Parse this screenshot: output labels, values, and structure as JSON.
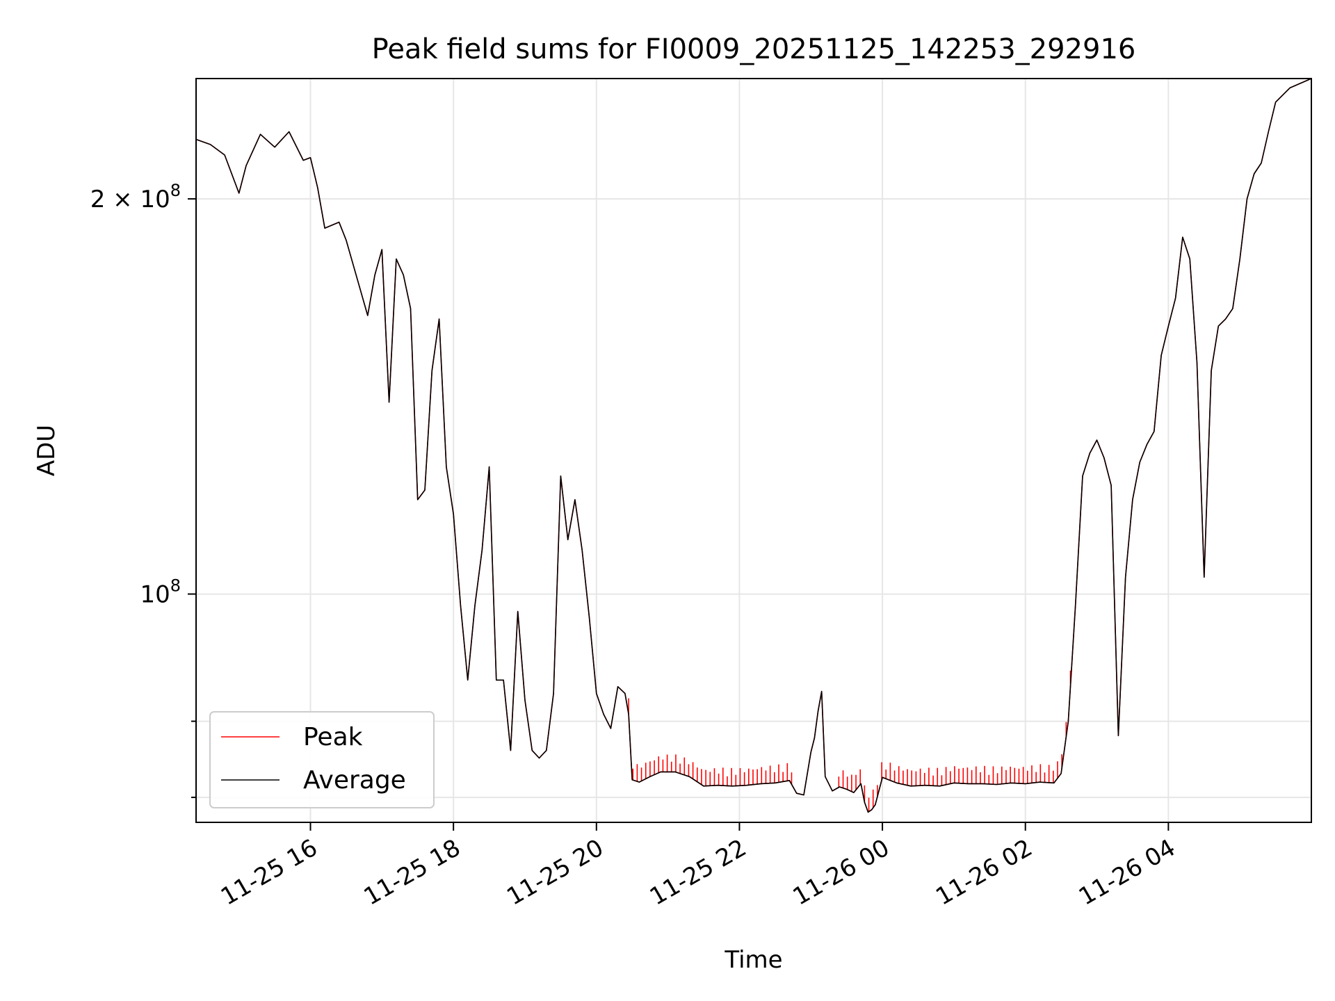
{
  "chart_data": {
    "type": "line",
    "title": "Peak field sums for FI0009_20251125_142253_292916",
    "xlabel": "Time",
    "ylabel": "ADU",
    "y_scale": "log",
    "ylim": [
      67000000,
      247000000
    ],
    "xlim_hours_from_11_25_00": [
      14.4,
      30.0
    ],
    "x_ticks": [
      {
        "hour": 16,
        "label": "11-25 16"
      },
      {
        "hour": 18,
        "label": "11-25 18"
      },
      {
        "hour": 20,
        "label": "11-25 20"
      },
      {
        "hour": 22,
        "label": "11-25 22"
      },
      {
        "hour": 24,
        "label": "11-26 00"
      },
      {
        "hour": 26,
        "label": "11-26 02"
      },
      {
        "hour": 28,
        "label": "11-26 04"
      }
    ],
    "y_major_ticks": [
      {
        "value": 200000000,
        "base": "2 × 10",
        "exp": "8"
      },
      {
        "value": 100000000,
        "base": "10",
        "exp": "8"
      }
    ],
    "y_minor_ticks": [
      70000000,
      80000000,
      300000000
    ],
    "grid": true,
    "legend": {
      "position": "lower-left",
      "entries": [
        {
          "name": "Peak",
          "color": "#ff0000"
        },
        {
          "name": "Average",
          "color": "#000000"
        }
      ]
    },
    "series": [
      {
        "name": "Peak",
        "color": "#ff0000",
        "x": [
          14.4,
          14.6,
          14.8,
          15.0,
          15.1,
          15.3,
          15.5,
          15.7,
          15.9,
          16.0,
          16.1,
          16.2,
          16.4,
          16.5,
          16.6,
          16.8,
          16.9,
          17.0,
          17.1,
          17.2,
          17.3,
          17.4,
          17.5,
          17.6,
          17.7,
          17.8,
          17.9,
          18.0,
          18.1,
          18.2,
          18.3,
          18.4,
          18.5,
          18.6,
          18.7,
          18.8,
          18.9,
          19.0,
          19.1,
          19.2,
          19.3,
          19.4,
          19.5,
          19.6,
          19.7,
          19.8,
          19.9,
          20.0,
          20.1,
          20.2,
          20.3,
          20.4,
          20.45,
          20.5,
          20.6,
          20.75,
          20.9,
          21.1,
          21.3,
          21.5,
          21.7,
          21.9,
          22.1,
          22.3,
          22.5,
          22.7,
          22.8,
          22.9,
          23.0,
          23.05,
          23.1,
          23.15,
          23.2,
          23.3,
          23.4,
          23.5,
          23.6,
          23.7,
          23.75,
          23.8,
          23.85,
          23.9,
          24.0,
          24.2,
          24.4,
          24.6,
          24.8,
          25.0,
          25.2,
          25.4,
          25.6,
          25.8,
          26.0,
          26.2,
          26.4,
          26.5,
          26.6,
          26.7,
          26.8,
          26.9,
          27.0,
          27.1,
          27.2,
          27.3,
          27.4,
          27.5,
          27.6,
          27.7,
          27.8,
          27.9,
          28.0,
          28.1,
          28.2,
          28.3,
          28.4,
          28.5,
          28.6,
          28.7,
          28.8,
          28.9,
          29.0,
          29.1,
          29.2,
          29.3,
          29.4,
          29.5,
          29.7,
          30.0
        ],
        "values": [
          222000000,
          220000000,
          216000000,
          202000000,
          212000000,
          224000000,
          219000000,
          225000000,
          214000000,
          215000000,
          204000000,
          190000000,
          192000000,
          186000000,
          178000000,
          163000000,
          175000000,
          183000000,
          140000000,
          180000000,
          175000000,
          165000000,
          118000000,
          120000000,
          148000000,
          162000000,
          125000000,
          115000000,
          98000000,
          86000000,
          98000000,
          108000000,
          125000000,
          86000000,
          86000000,
          76000000,
          97000000,
          83000000,
          76000000,
          75000000,
          76000000,
          84000000,
          123000000,
          110000000,
          118000000,
          108000000,
          96000000,
          84000000,
          81000000,
          79000000,
          85000000,
          84000000,
          81000000,
          72200000,
          71900000,
          72600000,
          73200000,
          73200000,
          72600000,
          71400000,
          71500000,
          71400000,
          71500000,
          71700000,
          71800000,
          72100000,
          70500000,
          70300000,
          75800000,
          77700000,
          81400000,
          84300000,
          72600000,
          70800000,
          71300000,
          71000000,
          70600000,
          71700000,
          69400000,
          68200000,
          68500000,
          69100000,
          72500000,
          71800000,
          71400000,
          71500000,
          71400000,
          71800000,
          71700000,
          71700000,
          71600000,
          71800000,
          71700000,
          71900000,
          71800000,
          73000000,
          80000000,
          98000000,
          123000000,
          128000000,
          131000000,
          127000000,
          121000000,
          78000000,
          103000000,
          118000000,
          126000000,
          130000000,
          133000000,
          152000000,
          160000000,
          168000000,
          187000000,
          180000000,
          150000000,
          103000000,
          148000000,
          160000000,
          162000000,
          165000000,
          180000000,
          200000000,
          209000000,
          213000000,
          225000000,
          237000000,
          243000000,
          247000000
        ],
        "spikes": {
          "from_hour": 20.45,
          "to_hour": 26.65,
          "step": 0.06,
          "extra": 2300000
        }
      },
      {
        "name": "Average",
        "color": "#000000",
        "x": [
          14.4,
          14.6,
          14.8,
          15.0,
          15.1,
          15.3,
          15.5,
          15.7,
          15.9,
          16.0,
          16.1,
          16.2,
          16.4,
          16.5,
          16.6,
          16.8,
          16.9,
          17.0,
          17.1,
          17.2,
          17.3,
          17.4,
          17.5,
          17.6,
          17.7,
          17.8,
          17.9,
          18.0,
          18.1,
          18.2,
          18.3,
          18.4,
          18.5,
          18.6,
          18.7,
          18.8,
          18.9,
          19.0,
          19.1,
          19.2,
          19.3,
          19.4,
          19.5,
          19.6,
          19.7,
          19.8,
          19.9,
          20.0,
          20.1,
          20.2,
          20.3,
          20.4,
          20.45,
          20.5,
          20.6,
          20.75,
          20.9,
          21.1,
          21.3,
          21.5,
          21.7,
          21.9,
          22.1,
          22.3,
          22.5,
          22.7,
          22.8,
          22.9,
          23.0,
          23.05,
          23.1,
          23.15,
          23.2,
          23.3,
          23.4,
          23.5,
          23.6,
          23.7,
          23.75,
          23.8,
          23.85,
          23.9,
          24.0,
          24.2,
          24.4,
          24.6,
          24.8,
          25.0,
          25.2,
          25.4,
          25.6,
          25.8,
          26.0,
          26.2,
          26.4,
          26.5,
          26.6,
          26.7,
          26.8,
          26.9,
          27.0,
          27.1,
          27.2,
          27.3,
          27.4,
          27.5,
          27.6,
          27.7,
          27.8,
          27.9,
          28.0,
          28.1,
          28.2,
          28.3,
          28.4,
          28.5,
          28.6,
          28.7,
          28.8,
          28.9,
          29.0,
          29.1,
          29.2,
          29.3,
          29.4,
          29.5,
          29.7,
          30.0
        ],
        "values": [
          222000000,
          220000000,
          216000000,
          202000000,
          212000000,
          224000000,
          219000000,
          225000000,
          214000000,
          215000000,
          204000000,
          190000000,
          192000000,
          186000000,
          178000000,
          163000000,
          175000000,
          183000000,
          140000000,
          180000000,
          175000000,
          165000000,
          118000000,
          120000000,
          148000000,
          162000000,
          125000000,
          115000000,
          98000000,
          86000000,
          98000000,
          108000000,
          125000000,
          86000000,
          86000000,
          76000000,
          97000000,
          83000000,
          76000000,
          75000000,
          76000000,
          84000000,
          123000000,
          110000000,
          118000000,
          108000000,
          96000000,
          84000000,
          81000000,
          79000000,
          85000000,
          84000000,
          81000000,
          72200000,
          71900000,
          72600000,
          73200000,
          73200000,
          72600000,
          71400000,
          71500000,
          71400000,
          71500000,
          71700000,
          71800000,
          72100000,
          70500000,
          70300000,
          75800000,
          77700000,
          81400000,
          84300000,
          72600000,
          70800000,
          71300000,
          71000000,
          70600000,
          71700000,
          69400000,
          68200000,
          68500000,
          69100000,
          72500000,
          71800000,
          71400000,
          71500000,
          71400000,
          71800000,
          71700000,
          71700000,
          71600000,
          71800000,
          71700000,
          71900000,
          71800000,
          73000000,
          80000000,
          98000000,
          123000000,
          128000000,
          131000000,
          127000000,
          121000000,
          78000000,
          103000000,
          118000000,
          126000000,
          130000000,
          133000000,
          152000000,
          160000000,
          168000000,
          187000000,
          180000000,
          150000000,
          103000000,
          148000000,
          160000000,
          162000000,
          165000000,
          180000000,
          200000000,
          209000000,
          213000000,
          225000000,
          237000000,
          243000000,
          247000000
        ]
      }
    ]
  }
}
